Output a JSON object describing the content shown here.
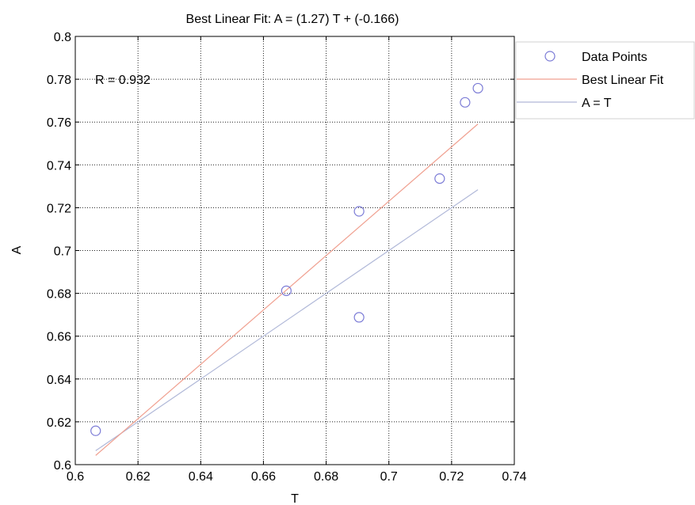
{
  "chart_data": {
    "type": "scatter",
    "title": "Best Linear Fit:  A = (1.27) T + (-0.166)",
    "xlabel": "T",
    "ylabel": "A",
    "xlim": [
      0.6,
      0.74
    ],
    "ylim": [
      0.6,
      0.8
    ],
    "xticks": [
      "0.6",
      "0.62",
      "0.64",
      "0.66",
      "0.68",
      "0.7",
      "0.72",
      "0.74"
    ],
    "yticks": [
      "0.6",
      "0.62",
      "0.64",
      "0.66",
      "0.68",
      "0.7",
      "0.72",
      "0.74",
      "0.76",
      "0.78",
      "0.8"
    ],
    "grid": true,
    "annotation": "R = 0.932",
    "legend_position": "top-right, outside plot",
    "series": [
      {
        "name": "Data Points",
        "kind": "markers",
        "marker": "circle",
        "color": "#7b7bd6",
        "x": [
          0.6065,
          0.6673,
          0.6905,
          0.6905,
          0.7162,
          0.7243,
          0.7284
        ],
        "y": [
          0.6158,
          0.6812,
          0.7183,
          0.6688,
          0.7336,
          0.7692,
          0.7758
        ]
      },
      {
        "name": "Best Linear Fit",
        "kind": "line",
        "color": "#f0a090",
        "x": [
          0.6065,
          0.7284
        ],
        "y": [
          0.6043,
          0.7591
        ]
      },
      {
        "name": "A = T",
        "kind": "line",
        "color": "#b0b8d8",
        "x": [
          0.6065,
          0.7284
        ],
        "y": [
          0.6065,
          0.7284
        ]
      }
    ]
  }
}
